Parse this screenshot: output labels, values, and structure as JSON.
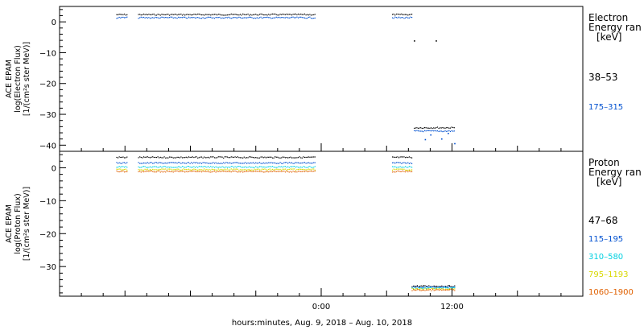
{
  "chart_data": [
    {
      "type": "scatter",
      "ylabel_lines": [
        "ACE EPAM",
        "log(Electron Flux)",
        "[1/(cm²s ster MeV)]"
      ],
      "ylim": [
        -42,
        5
      ],
      "yticks": [
        0,
        -10,
        -20,
        -30,
        -40
      ],
      "ytick_labels": [
        "0",
        "−10",
        "−20",
        "−30",
        "−40"
      ],
      "legend_title": [
        "Electron",
        "Energy ran",
        "[keV]"
      ],
      "series": [
        {
          "name": "38–53",
          "color": "#000000",
          "segments": [
            [
              -18.8,
              -17.8,
              2.5
            ],
            [
              -16.8,
              -0.6,
              2.5
            ],
            [
              6.5,
              8.3,
              2.5
            ],
            [
              8.5,
              12.2,
              -34.2
            ]
          ],
          "sparse": [
            [
              8.5,
              -6.0
            ],
            [
              10.5,
              -6.0
            ]
          ]
        },
        {
          "name": "175–315",
          "color": "#0050d0",
          "segments": [
            [
              -18.8,
              -17.8,
              1.5
            ],
            [
              -16.8,
              -0.6,
              1.5
            ],
            [
              6.5,
              8.3,
              1.5
            ],
            [
              8.5,
              12.2,
              -35.3
            ]
          ],
          "sparse": [
            [
              9.5,
              -38.0
            ],
            [
              10.0,
              -36.5
            ],
            [
              11.0,
              -37.8
            ],
            [
              11.6,
              -36.0
            ],
            [
              12.2,
              -39.3
            ]
          ]
        }
      ]
    },
    {
      "type": "scatter",
      "ylabel_lines": [
        "ACE EPAM",
        "log(Proton Flux)",
        "[1/(cm²s ster MeV)]"
      ],
      "ylim": [
        -39,
        5
      ],
      "yticks": [
        0,
        -10,
        -20,
        -30
      ],
      "ytick_labels": [
        "0",
        "−10",
        "−20",
        "−30"
      ],
      "legend_title": [
        "Proton",
        "Energy ran",
        "[keV]"
      ],
      "series": [
        {
          "name": "47–68",
          "color": "#000000",
          "segments": [
            [
              -18.8,
              -17.8,
              3.3
            ],
            [
              -16.8,
              -0.6,
              3.3
            ],
            [
              6.5,
              8.3,
              3.3
            ],
            [
              8.3,
              12.2,
              -35.8
            ]
          ]
        },
        {
          "name": "115–195",
          "color": "#0050d0",
          "segments": [
            [
              -18.8,
              -17.8,
              1.6
            ],
            [
              -16.8,
              -0.6,
              1.6
            ],
            [
              6.5,
              8.3,
              1.6
            ],
            [
              8.3,
              12.2,
              -36.1
            ]
          ]
        },
        {
          "name": "310–580",
          "color": "#00d0e0",
          "segments": [
            [
              -18.8,
              -17.8,
              0.4
            ],
            [
              -16.8,
              -0.6,
              0.4
            ],
            [
              6.5,
              8.3,
              0.4
            ],
            [
              8.3,
              12.2,
              -36.4
            ]
          ]
        },
        {
          "name": "795–1193",
          "color": "#d8d800",
          "segments": [
            [
              -18.8,
              -17.8,
              -0.4
            ],
            [
              -16.8,
              -0.6,
              -0.4
            ],
            [
              6.5,
              8.3,
              -0.4
            ],
            [
              8.3,
              12.2,
              -36.7
            ]
          ]
        },
        {
          "name": "1060–1900",
          "color": "#e06000",
          "segments": [
            [
              -18.8,
              -17.8,
              -1.0
            ],
            [
              -16.8,
              -0.6,
              -1.0
            ],
            [
              6.5,
              8.3,
              -1.0
            ],
            [
              8.3,
              12.2,
              -37.0
            ]
          ]
        }
      ]
    }
  ],
  "xaxis": {
    "range_hours": [
      -24,
      24
    ],
    "major_ticks": [
      0,
      12
    ],
    "tick_labels": [
      "0:00",
      "12:00"
    ],
    "minor_tick_step_hours": 2,
    "label": "hours:minutes, Aug.  9, 2018 – Aug. 10, 2018"
  }
}
